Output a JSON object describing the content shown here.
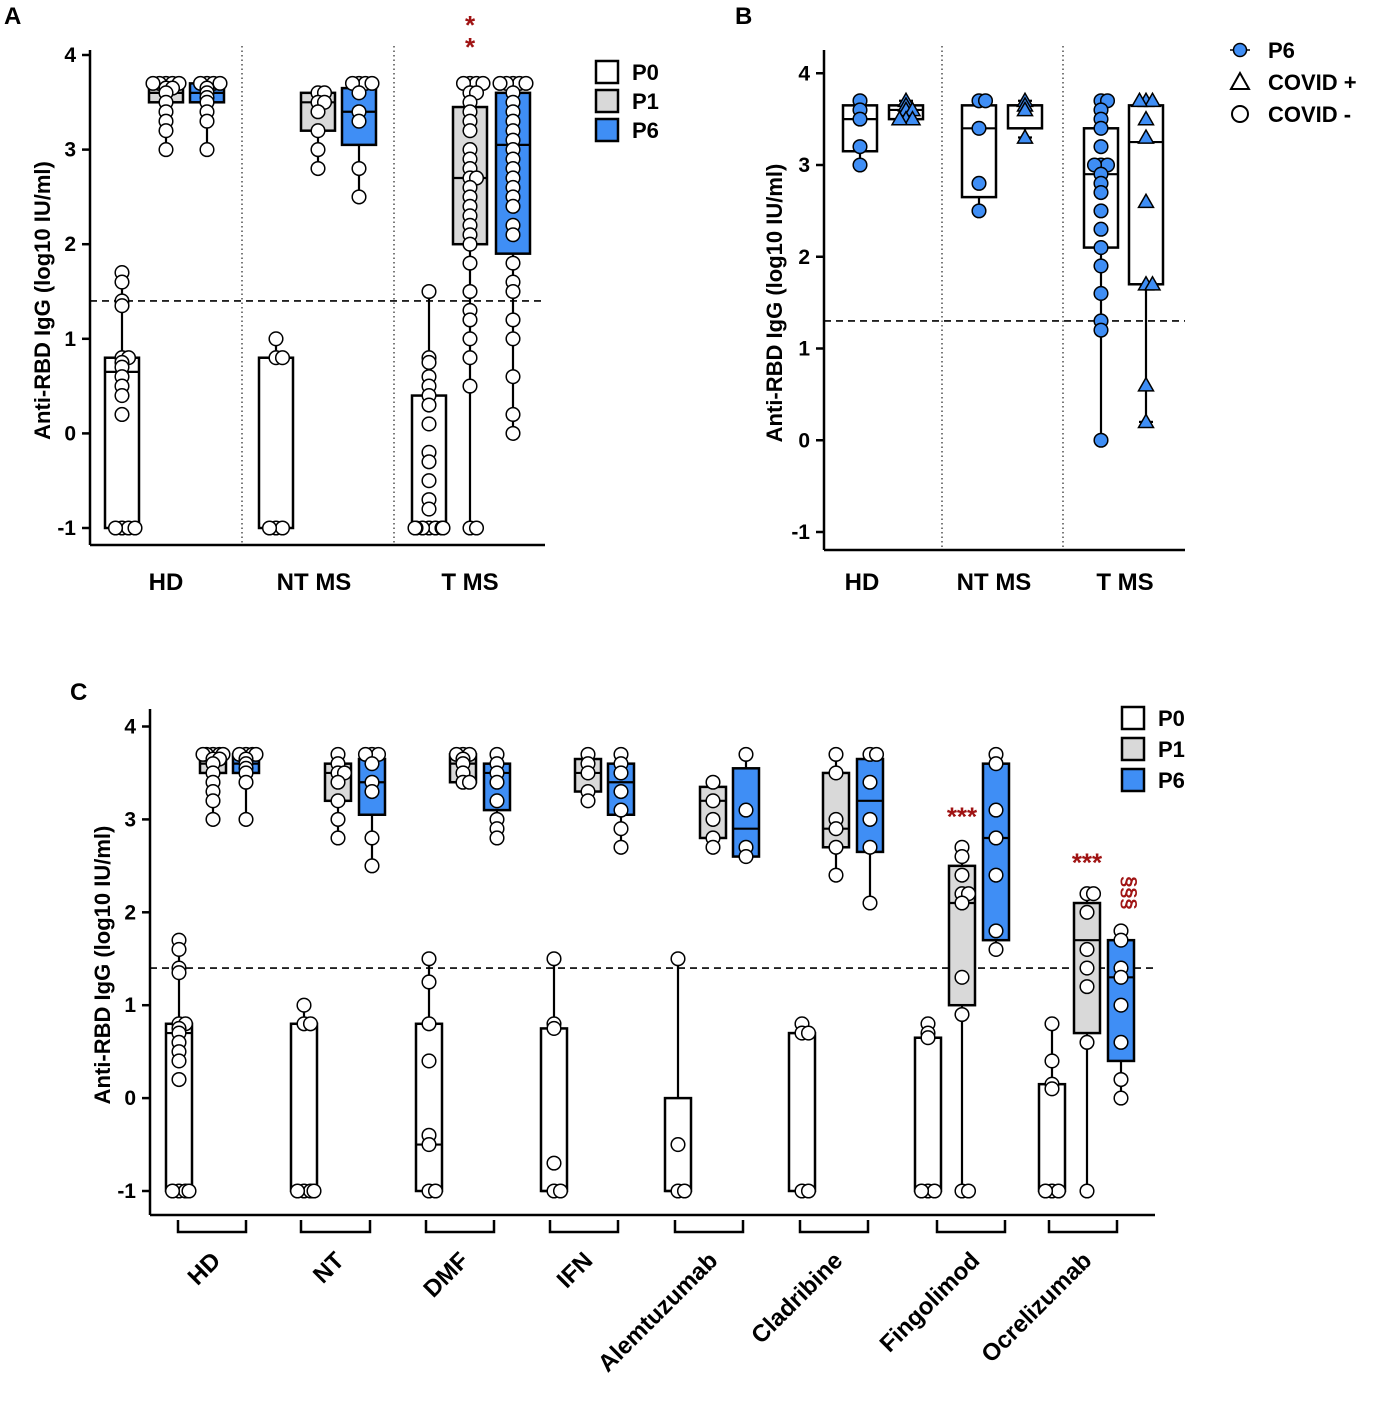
{
  "chart_data": [
    {
      "type": "box",
      "panel": "A",
      "ylabel": "Anti-RBD IgG (log10 IU/ml)",
      "yticks": [
        "-1",
        "0",
        "1",
        "2",
        "3",
        "4"
      ],
      "ylim": [
        -1.2,
        4.1
      ],
      "threshold": 1.4,
      "groups": [
        "HD",
        "NT MS",
        "T MS"
      ],
      "legend": [
        {
          "label": "P0",
          "color": "#ffffff"
        },
        {
          "label": "P1",
          "color": "#d9d9d9"
        },
        {
          "label": "P6",
          "color": "#3f8ef5"
        }
      ],
      "annotations": [
        {
          "text": "**",
          "group": "T MS",
          "series": "P1"
        }
      ],
      "boxes": [
        {
          "group": "HD",
          "series": "P0",
          "min": -1,
          "q1": -1,
          "median": 0.65,
          "q3": 0.8,
          "max": 1.7,
          "points": [
            1.7,
            1.6,
            1.4,
            1.35,
            0.8,
            0.8,
            0.75,
            0.7,
            0.6,
            0.5,
            0.4,
            0.2,
            -1,
            -1,
            -1,
            -1
          ]
        },
        {
          "group": "HD",
          "series": "P1",
          "min": 3.0,
          "q1": 3.5,
          "median": 3.6,
          "q3": 3.7,
          "max": 3.7,
          "points": [
            3.7,
            3.7,
            3.7,
            3.7,
            3.7,
            3.65,
            3.65,
            3.6,
            3.5,
            3.4,
            3.3,
            3.2,
            3.0
          ]
        },
        {
          "group": "HD",
          "series": "P6",
          "min": 3.0,
          "q1": 3.5,
          "median": 3.6,
          "q3": 3.7,
          "max": 3.7,
          "points": [
            3.7,
            3.7,
            3.7,
            3.7,
            3.65,
            3.6,
            3.55,
            3.5,
            3.4,
            3.3,
            3.0
          ]
        },
        {
          "group": "NT MS",
          "series": "P0",
          "min": -1,
          "q1": -1,
          "median": 0.8,
          "q3": 0.8,
          "max": 1.0,
          "points": [
            1.0,
            0.8,
            0.8,
            -1,
            -1,
            -1
          ]
        },
        {
          "group": "NT MS",
          "series": "P1",
          "min": 2.8,
          "q1": 3.2,
          "median": 3.5,
          "q3": 3.6,
          "max": 3.6,
          "points": [
            3.6,
            3.6,
            3.5,
            3.5,
            3.4,
            3.2,
            3.0,
            2.8
          ]
        },
        {
          "group": "NT MS",
          "series": "P6",
          "min": 2.5,
          "q1": 3.05,
          "median": 3.4,
          "q3": 3.65,
          "max": 3.7,
          "points": [
            3.7,
            3.7,
            3.7,
            3.7,
            3.6,
            3.4,
            3.3,
            2.8,
            2.5
          ]
        },
        {
          "group": "T MS",
          "series": "P0",
          "min": -1,
          "q1": -1,
          "median": -1,
          "q3": 0.4,
          "max": 1.5,
          "points": [
            1.5,
            0.8,
            0.75,
            0.6,
            0.5,
            0.4,
            0.3,
            0.1,
            -0.2,
            -0.3,
            -0.5,
            -0.7,
            -0.8,
            -1,
            -1,
            -1,
            -1,
            -1,
            -1,
            -1
          ]
        },
        {
          "group": "T MS",
          "series": "P1",
          "min": -1,
          "q1": 2.0,
          "median": 2.7,
          "q3": 3.45,
          "max": 3.7,
          "points": [
            3.7,
            3.7,
            3.7,
            3.7,
            3.6,
            3.6,
            3.5,
            3.4,
            3.3,
            3.2,
            3.0,
            2.9,
            2.8,
            2.7,
            2.7,
            2.6,
            2.5,
            2.4,
            2.3,
            2.2,
            2.1,
            2.0,
            1.8,
            1.5,
            1.3,
            1.2,
            1.0,
            0.8,
            0.5,
            -1,
            -1
          ]
        },
        {
          "group": "T MS",
          "series": "P6",
          "min": 0.0,
          "q1": 1.9,
          "median": 3.05,
          "q3": 3.6,
          "max": 3.7,
          "points": [
            3.7,
            3.7,
            3.7,
            3.7,
            3.7,
            3.6,
            3.5,
            3.4,
            3.3,
            3.2,
            3.1,
            3.0,
            2.9,
            2.8,
            2.7,
            2.6,
            2.5,
            2.4,
            2.2,
            2.1,
            1.8,
            1.6,
            1.5,
            1.2,
            1.0,
            0.6,
            0.2,
            0.0
          ]
        }
      ]
    },
    {
      "type": "box",
      "panel": "B",
      "ylabel": "Anti-RBD IgG (log10 IU/ml)",
      "yticks": [
        "-1",
        "0",
        "1",
        "2",
        "3",
        "4"
      ],
      "ylim": [
        -1.2,
        4.1
      ],
      "threshold": 1.3,
      "groups": [
        "HD",
        "NT MS",
        "T MS"
      ],
      "legend": [
        {
          "label": "P6",
          "marker": "filled-circle"
        },
        {
          "label": "COVID +",
          "marker": "triangle"
        },
        {
          "label": "COVID -",
          "marker": "circle"
        }
      ],
      "boxes": [
        {
          "group": "HD",
          "series": "COVID -",
          "min": 3.0,
          "q1": 3.15,
          "median": 3.5,
          "q3": 3.65,
          "max": 3.7,
          "marker": "circle",
          "points": [
            3.7,
            3.6,
            3.5,
            3.2,
            3.0
          ]
        },
        {
          "group": "HD",
          "series": "COVID +",
          "min": 3.5,
          "q1": 3.5,
          "median": 3.6,
          "q3": 3.65,
          "max": 3.7,
          "marker": "triangle",
          "points": [
            3.7,
            3.65,
            3.6,
            3.6,
            3.5,
            3.5,
            3.5
          ]
        },
        {
          "group": "NT MS",
          "series": "COVID -",
          "min": 2.5,
          "q1": 2.65,
          "median": 3.4,
          "q3": 3.65,
          "max": 3.7,
          "marker": "circle",
          "points": [
            3.7,
            3.7,
            3.4,
            2.8,
            2.5
          ]
        },
        {
          "group": "NT MS",
          "series": "COVID +",
          "min": 3.3,
          "q1": 3.4,
          "median": 3.65,
          "q3": 3.65,
          "max": 3.7,
          "marker": "triangle",
          "points": [
            3.7,
            3.65,
            3.6,
            3.3
          ]
        },
        {
          "group": "T MS",
          "series": "COVID -",
          "min": 0.0,
          "q1": 2.1,
          "median": 2.9,
          "q3": 3.4,
          "max": 3.7,
          "marker": "circle",
          "points": [
            3.7,
            3.7,
            3.6,
            3.5,
            3.4,
            3.2,
            3.0,
            3.0,
            3.0,
            2.9,
            2.8,
            2.7,
            2.5,
            2.3,
            2.1,
            1.9,
            1.6,
            1.3,
            1.2,
            0.0
          ]
        },
        {
          "group": "T MS",
          "series": "COVID +",
          "min": 0.2,
          "q1": 1.7,
          "median": 3.25,
          "q3": 3.65,
          "max": 3.7,
          "marker": "triangle",
          "points": [
            3.7,
            3.7,
            3.7,
            3.5,
            3.3,
            2.6,
            1.7,
            1.7,
            0.6,
            0.2
          ]
        }
      ]
    },
    {
      "type": "box",
      "panel": "C",
      "ylabel": "Anti-RBD IgG (log10 IU/ml)",
      "yticks": [
        "-1",
        "0",
        "1",
        "2",
        "3",
        "4"
      ],
      "ylim": [
        -1.2,
        4.1
      ],
      "threshold": 1.4,
      "groups": [
        "HD",
        "NT",
        "DMF",
        "IFN",
        "Alemtuzumab",
        "Cladribine",
        "Fingolimod",
        "Ocrelizumab"
      ],
      "legend": [
        {
          "label": "P0",
          "color": "#ffffff"
        },
        {
          "label": "P1",
          "color": "#d9d9d9"
        },
        {
          "label": "P6",
          "color": "#3f8ef5"
        }
      ],
      "annotations": [
        {
          "text": "***",
          "group": "Fingolimod",
          "series": "P1"
        },
        {
          "text": "***",
          "group": "Ocrelizumab",
          "series": "P1"
        },
        {
          "text": "§§§",
          "group": "Ocrelizumab",
          "series": "P6"
        }
      ],
      "boxes": [
        {
          "group": "HD",
          "series": "P0",
          "min": -1,
          "q1": -1,
          "median": 0.7,
          "q3": 0.8,
          "max": 1.7,
          "points": [
            1.7,
            1.6,
            1.4,
            1.35,
            0.8,
            0.8,
            0.75,
            0.7,
            0.6,
            0.5,
            0.4,
            0.2,
            -1,
            -1,
            -1,
            -1
          ]
        },
        {
          "group": "HD",
          "series": "P1",
          "min": 3.0,
          "q1": 3.5,
          "median": 3.6,
          "q3": 3.7,
          "max": 3.7,
          "points": [
            3.7,
            3.7,
            3.7,
            3.7,
            3.7,
            3.65,
            3.65,
            3.6,
            3.5,
            3.4,
            3.3,
            3.2,
            3.0
          ]
        },
        {
          "group": "HD",
          "series": "P6",
          "min": 3.0,
          "q1": 3.5,
          "median": 3.6,
          "q3": 3.7,
          "max": 3.7,
          "points": [
            3.7,
            3.7,
            3.7,
            3.7,
            3.65,
            3.6,
            3.55,
            3.5,
            3.4,
            3.0
          ]
        },
        {
          "group": "NT",
          "series": "P0",
          "min": -1,
          "q1": -1,
          "median": 0.8,
          "q3": 0.8,
          "max": 1.0,
          "points": [
            1.0,
            0.8,
            0.8,
            -1,
            -1,
            -1,
            -1
          ]
        },
        {
          "group": "NT",
          "series": "P1",
          "min": 2.8,
          "q1": 3.2,
          "median": 3.5,
          "q3": 3.6,
          "max": 3.7,
          "points": [
            3.7,
            3.6,
            3.5,
            3.5,
            3.4,
            3.2,
            3.0,
            2.8
          ]
        },
        {
          "group": "NT",
          "series": "P6",
          "min": 2.5,
          "q1": 3.05,
          "median": 3.4,
          "q3": 3.65,
          "max": 3.7,
          "points": [
            3.7,
            3.7,
            3.7,
            3.6,
            3.4,
            3.3,
            2.8,
            2.5
          ]
        },
        {
          "group": "DMF",
          "series": "P0",
          "min": -1,
          "q1": -1,
          "median": -0.5,
          "q3": 0.8,
          "max": 1.5,
          "points": [
            1.5,
            1.25,
            0.8,
            0.4,
            -0.4,
            -0.5,
            -1,
            -1
          ]
        },
        {
          "group": "DMF",
          "series": "P1",
          "min": 3.4,
          "q1": 3.4,
          "median": 3.6,
          "q3": 3.7,
          "max": 3.7,
          "points": [
            3.7,
            3.7,
            3.7,
            3.65,
            3.6,
            3.5,
            3.4,
            3.4
          ]
        },
        {
          "group": "DMF",
          "series": "P6",
          "min": 2.8,
          "q1": 3.1,
          "median": 3.5,
          "q3": 3.6,
          "max": 3.7,
          "points": [
            3.7,
            3.6,
            3.5,
            3.4,
            3.2,
            3.0,
            2.9,
            2.8
          ]
        },
        {
          "group": "IFN",
          "series": "P0",
          "min": -1,
          "q1": -1,
          "median": -1,
          "q3": 0.75,
          "max": 1.5,
          "points": [
            1.5,
            0.8,
            0.75,
            -0.7,
            -1,
            -1
          ]
        },
        {
          "group": "IFN",
          "series": "P1",
          "min": 3.2,
          "q1": 3.3,
          "median": 3.5,
          "q3": 3.65,
          "max": 3.7,
          "points": [
            3.7,
            3.6,
            3.5,
            3.3,
            3.2
          ]
        },
        {
          "group": "IFN",
          "series": "P6",
          "min": 2.7,
          "q1": 3.05,
          "median": 3.4,
          "q3": 3.6,
          "max": 3.7,
          "points": [
            3.7,
            3.6,
            3.5,
            3.3,
            3.1,
            2.9,
            2.7
          ]
        },
        {
          "group": "Alemtuzumab",
          "series": "P0",
          "min": -1,
          "q1": -1,
          "median": -1,
          "q3": 0.0,
          "max": 1.5,
          "points": [
            1.5,
            -0.5,
            -1,
            -1
          ]
        },
        {
          "group": "Alemtuzumab",
          "series": "P1",
          "min": 2.7,
          "q1": 2.8,
          "median": 3.2,
          "q3": 3.35,
          "max": 3.4,
          "points": [
            3.4,
            3.2,
            3.0,
            2.8,
            2.7
          ]
        },
        {
          "group": "Alemtuzumab",
          "series": "P6",
          "min": 2.6,
          "q1": 2.6,
          "median": 2.9,
          "q3": 3.55,
          "max": 3.7,
          "points": [
            3.7,
            3.1,
            2.7,
            2.6
          ]
        },
        {
          "group": "Cladribine",
          "series": "P0",
          "min": -1,
          "q1": -1,
          "median": 0.7,
          "q3": 0.7,
          "max": 0.8,
          "points": [
            0.8,
            0.7,
            0.7,
            -1,
            -1
          ]
        },
        {
          "group": "Cladribine",
          "series": "P1",
          "min": 2.4,
          "q1": 2.7,
          "median": 2.9,
          "q3": 3.5,
          "max": 3.7,
          "points": [
            3.7,
            3.5,
            3.0,
            2.9,
            2.7,
            2.4
          ]
        },
        {
          "group": "Cladribine",
          "series": "P6",
          "min": 2.1,
          "q1": 2.65,
          "median": 3.2,
          "q3": 3.65,
          "max": 3.7,
          "points": [
            3.7,
            3.7,
            3.4,
            3.0,
            2.7,
            2.1
          ]
        },
        {
          "group": "Fingolimod",
          "series": "P0",
          "min": -1,
          "q1": -1,
          "median": 0.65,
          "q3": 0.65,
          "max": 0.8,
          "points": [
            0.8,
            0.7,
            0.65,
            -1,
            -1,
            -1
          ]
        },
        {
          "group": "Fingolimod",
          "series": "P1",
          "min": -1,
          "q1": 1.0,
          "median": 2.1,
          "q3": 2.5,
          "max": 2.7,
          "points": [
            2.7,
            2.6,
            2.4,
            2.2,
            2.2,
            2.1,
            1.3,
            0.9,
            -1,
            -1
          ]
        },
        {
          "group": "Fingolimod",
          "series": "P6",
          "min": 1.6,
          "q1": 1.7,
          "median": 2.8,
          "q3": 3.6,
          "max": 3.7,
          "points": [
            3.7,
            3.6,
            3.1,
            2.8,
            2.4,
            1.8,
            1.6
          ]
        },
        {
          "group": "Ocrelizumab",
          "series": "P0",
          "min": -1,
          "q1": -1,
          "median": -1,
          "q3": 0.15,
          "max": 0.8,
          "points": [
            0.8,
            0.4,
            0.15,
            0.1,
            -1,
            -1,
            -1
          ]
        },
        {
          "group": "Ocrelizumab",
          "series": "P1",
          "min": -1,
          "q1": 0.7,
          "median": 1.7,
          "q3": 2.1,
          "max": 2.2,
          "points": [
            2.2,
            2.2,
            2.0,
            1.6,
            1.4,
            1.2,
            0.6,
            -1
          ]
        },
        {
          "group": "Ocrelizumab",
          "series": "P6",
          "min": 0.0,
          "q1": 0.4,
          "median": 1.3,
          "q3": 1.7,
          "max": 1.8,
          "points": [
            1.8,
            1.7,
            1.4,
            1.3,
            1.0,
            0.6,
            0.2,
            0.0
          ]
        }
      ]
    }
  ]
}
